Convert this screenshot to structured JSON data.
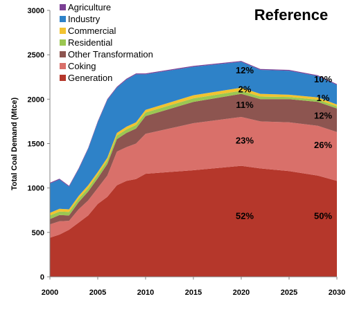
{
  "chart_data": {
    "type": "area",
    "title": "Reference",
    "ylabel": "Total Coal Demand (Mtce)",
    "xlabel": "",
    "xlim": [
      2000,
      2030
    ],
    "ylim": [
      0,
      3000
    ],
    "x_ticks": [
      2000,
      2005,
      2010,
      2015,
      2020,
      2025,
      2030
    ],
    "y_ticks": [
      0,
      500,
      1000,
      1500,
      2000,
      2500,
      3000
    ],
    "grid": false,
    "legend_position": "top-left",
    "x": [
      2000,
      2001,
      2002,
      2003,
      2004,
      2005,
      2006,
      2007,
      2008,
      2009,
      2010,
      2015,
      2020,
      2022,
      2025,
      2028,
      2030
    ],
    "series": [
      {
        "name": "Generation",
        "color": "#b5372b",
        "values": [
          440,
          475,
          530,
          610,
          690,
          820,
          900,
          1030,
          1080,
          1100,
          1160,
          1200,
          1250,
          1220,
          1190,
          1140,
          1080
        ]
      },
      {
        "name": "Coking",
        "color": "#d9706a",
        "values": [
          150,
          150,
          100,
          150,
          170,
          180,
          240,
          380,
          380,
          400,
          450,
          530,
          550,
          530,
          550,
          560,
          550
        ]
      },
      {
        "name": "Other Transformation",
        "color": "#8d5550",
        "values": [
          60,
          70,
          60,
          80,
          100,
          110,
          130,
          140,
          160,
          170,
          200,
          240,
          260,
          250,
          260,
          270,
          265
        ]
      },
      {
        "name": "Residential",
        "color": "#9bc752",
        "values": [
          40,
          40,
          40,
          40,
          40,
          40,
          40,
          40,
          40,
          40,
          40,
          40,
          35,
          30,
          25,
          25,
          25
        ]
      },
      {
        "name": "Commercial",
        "color": "#f2c330",
        "values": [
          30,
          30,
          30,
          30,
          30,
          30,
          30,
          30,
          30,
          30,
          30,
          35,
          35,
          30,
          25,
          25,
          20
        ]
      },
      {
        "name": "Industry",
        "color": "#2e82c8",
        "values": [
          330,
          330,
          255,
          300,
          410,
          560,
          650,
          510,
          530,
          540,
          400,
          320,
          290,
          270,
          270,
          240,
          220
        ]
      },
      {
        "name": "Agriculture",
        "color": "#7b3f94",
        "values": [
          10,
          10,
          10,
          10,
          10,
          10,
          10,
          10,
          10,
          10,
          10,
          10,
          10,
          10,
          10,
          10,
          10
        ]
      }
    ],
    "legend_order": [
      "Agriculture",
      "Industry",
      "Commercial",
      "Residential",
      "Other Transformation",
      "Coking",
      "Generation"
    ],
    "annotations": [
      {
        "text": "12%",
        "x": 2020,
        "y": 2290
      },
      {
        "text": "2%",
        "x": 2020,
        "y": 2075
      },
      {
        "text": "11%",
        "x": 2020,
        "y": 1900
      },
      {
        "text": "23%",
        "x": 2020,
        "y": 1500
      },
      {
        "text": "52%",
        "x": 2020,
        "y": 650
      },
      {
        "text": "10%",
        "x": 2030,
        "y": 2190
      },
      {
        "text": "1%",
        "x": 2030,
        "y": 1980
      },
      {
        "text": "12%",
        "x": 2030,
        "y": 1780
      },
      {
        "text": "26%",
        "x": 2030,
        "y": 1450
      },
      {
        "text": "50%",
        "x": 2030,
        "y": 650
      }
    ]
  }
}
